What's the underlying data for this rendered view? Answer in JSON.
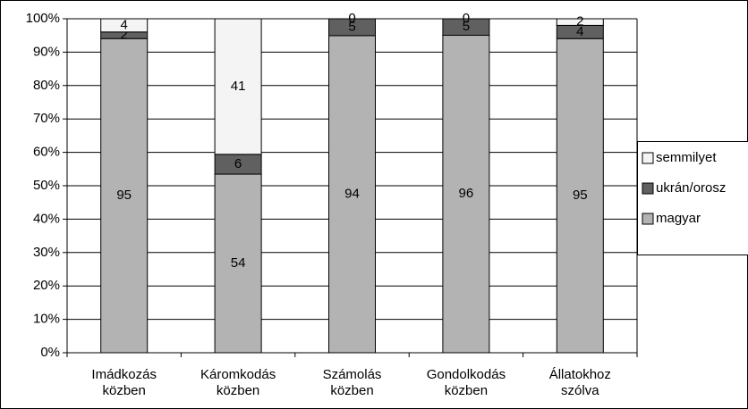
{
  "chart_data": {
    "type": "bar",
    "stacked": "percent",
    "categories": [
      "Imádkozás közben",
      "Káromkodás közben",
      "Számolás közben",
      "Gondolkodás közben",
      "Állatokhoz szólva"
    ],
    "series": [
      {
        "name": "magyar",
        "color": "#b3b3b3",
        "values": [
          95,
          54,
          94,
          96,
          95
        ]
      },
      {
        "name": "ukrán/orosz",
        "color": "#606060",
        "values": [
          2,
          6,
          5,
          5,
          4
        ]
      },
      {
        "name": "semmilyet",
        "color": "#f4f4f4",
        "values": [
          4,
          41,
          0,
          0,
          2
        ]
      }
    ],
    "ylim": [
      0,
      100
    ],
    "yticks": [
      {
        "value": 0,
        "label": "0%"
      },
      {
        "value": 10,
        "label": "10%"
      },
      {
        "value": 20,
        "label": "20%"
      },
      {
        "value": 30,
        "label": "30%"
      },
      {
        "value": 40,
        "label": "40%"
      },
      {
        "value": 50,
        "label": "50%"
      },
      {
        "value": 60,
        "label": "60%"
      },
      {
        "value": 70,
        "label": "70%"
      },
      {
        "value": 80,
        "label": "80%"
      },
      {
        "value": 90,
        "label": "90%"
      },
      {
        "value": 100,
        "label": "100%"
      }
    ],
    "grid": true,
    "legend": "right"
  }
}
